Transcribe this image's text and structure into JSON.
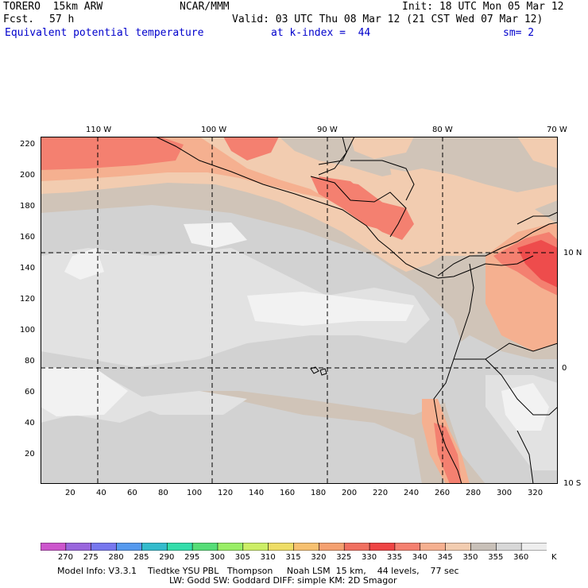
{
  "header": {
    "model": "TORERO  15km ARW",
    "center": "NCAR/MMM",
    "init": "Init: 18 UTC Mon 05 Mar 12",
    "fcst_label": "Fcst.",
    "fcst_value": "57 h",
    "valid": "Valid: 03 UTC Thu 08 Mar 12 (21 CST Wed 07 Mar 12)",
    "field": "Equivalent potential temperature",
    "level": "at k-index =  44",
    "smooth": "sm= 2"
  },
  "map": {
    "lon_labels": [
      "110 W",
      "100 W",
      "90 W",
      "80 W",
      "70 W"
    ],
    "lat_labels": [
      "10 N",
      "0",
      "10 S"
    ],
    "y_ticks": [
      "220",
      "200",
      "180",
      "160",
      "140",
      "120",
      "100",
      "80",
      "60",
      "40",
      "20"
    ],
    "x_ticks": [
      "20",
      "40",
      "60",
      "80",
      "100",
      "120",
      "140",
      "160",
      "180",
      "200",
      "220",
      "240",
      "260",
      "280",
      "300",
      "320"
    ]
  },
  "colorbar": {
    "labels": [
      "270",
      "275",
      "280",
      "285",
      "290",
      "295",
      "300",
      "305",
      "310",
      "315",
      "320",
      "325",
      "330",
      "335",
      "340",
      "345",
      "350",
      "355",
      "360"
    ],
    "unit": "K",
    "colors": [
      "#cc55cc",
      "#9966dd",
      "#7777ee",
      "#5599ee",
      "#33bbcc",
      "#33ddaa",
      "#55dd77",
      "#99ee66",
      "#ccee66",
      "#eedd66",
      "#f6c070",
      "#f4a070",
      "#f07060",
      "#ee4444",
      "#f48070",
      "#f5b090",
      "#f2ccb0",
      "#c8c0b8",
      "#d8d8d8",
      "#eeeeee"
    ],
    "field_colors": {
      "v310": "#f2f2f2",
      "v315": "#e2e2e2",
      "v320": "#d2d2d2",
      "v325": "#d0c4b8",
      "v330": "#f2ccb0",
      "v335": "#f5b090",
      "v340": "#f48070",
      "v345": "#ee4c4c",
      "border": "#000000",
      "grid": "#000000"
    }
  },
  "footer": {
    "line1": "Model Info: V3.3.1    Tiedtke YSU PBL   Thompson     Noah LSM  15 km,    44 levels,    77 sec",
    "line2": "LW: Godd SW: Goddard DIFF: simple KM: 2D Smagor"
  }
}
